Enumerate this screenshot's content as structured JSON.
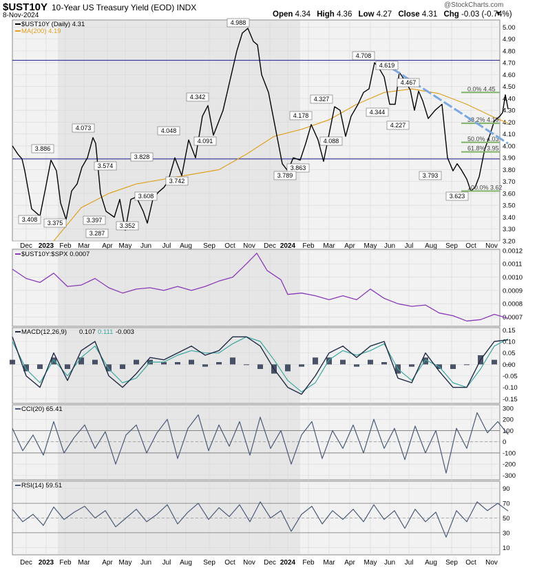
{
  "header": {
    "symbol": "$UST10Y",
    "description": "10-Year US Treasury Yield (EOD)",
    "exchange": "INDX",
    "date": "8-Nov-2024",
    "watermark": "@StockCharts.com",
    "open_label": "Open",
    "open": "4.34",
    "high_label": "High",
    "high": "4.36",
    "low_label": "Low",
    "low": "4.27",
    "close_label": "Close",
    "close": "4.31",
    "chg_label": "Chg",
    "chg": "-0.03 (-0.74%)",
    "dropdown_icon": "chevron-down-icon"
  },
  "colors": {
    "price": "#000000",
    "ma": "#e0a020",
    "ratio": "#8a3ab9",
    "macd": "#1f2a44",
    "signal": "#3aa6a0",
    "hist": "#1f2a44",
    "cci": "#4a5a78",
    "rsi": "#4a5a78",
    "fib": "#7fb36a",
    "trend": "#7aa8e0",
    "hline": "#1a1a8c",
    "shade": "#e6e6e6",
    "panel_bg": "#f2f2f2"
  },
  "chart_data": [
    {
      "type": "line",
      "panel": "price",
      "legend": [
        "$UST10Y (Daily) 4.31",
        "MA(200) 4.19"
      ],
      "ylim": [
        3.2,
        5.06
      ],
      "yticks": [
        "5.00",
        "4.90",
        "4.80",
        "4.70",
        "4.60",
        "4.50",
        "4.40",
        "4.30",
        "4.20",
        "4.10",
        "4.00",
        "3.90",
        "3.80",
        "3.70",
        "3.60",
        "3.50",
        "3.40",
        "3.30",
        "3.20"
      ],
      "series": [
        {
          "name": "$UST10Y (Daily) 4.31",
          "x": [
            0,
            8,
            14,
            18,
            28,
            40,
            48,
            56,
            64,
            70,
            78,
            86,
            94,
            101,
            109,
            117,
            121,
            128,
            136,
            148,
            156,
            164,
            172,
            180,
            190,
            196,
            204,
            212,
            220,
            226,
            236,
            246,
            256,
            266,
            276,
            284,
            292,
            306,
            316,
            326,
            334,
            342,
            350,
            356,
            362,
            372,
            382,
            392,
            400,
            408,
            418,
            426,
            434,
            444,
            452,
            460,
            468,
            476,
            484,
            492,
            502,
            510,
            518,
            526,
            534,
            540,
            548,
            556,
            562,
            570,
            578,
            584,
            590,
            596,
            604,
            614,
            624,
            632,
            640,
            646,
            652,
            660,
            666,
            672,
            678,
            686,
            694,
            700,
            708,
            712,
            716,
            720
          ],
          "values": [
            4.0,
            3.93,
            3.89,
            3.79,
            3.47,
            3.41,
            3.64,
            3.88,
            3.79,
            3.52,
            3.38,
            3.62,
            3.68,
            3.82,
            3.9,
            4.07,
            4.02,
            3.6,
            3.45,
            3.4,
            3.55,
            3.29,
            3.55,
            3.57,
            3.45,
            3.35,
            3.55,
            3.61,
            3.65,
            3.7,
            3.9,
            3.75,
            4.05,
            3.9,
            4.25,
            4.34,
            4.09,
            4.3,
            4.55,
            4.8,
            4.95,
            4.99,
            4.88,
            4.85,
            4.6,
            4.45,
            4.15,
            3.85,
            3.79,
            3.9,
            3.88,
            4.02,
            4.18,
            4.05,
            3.87,
            4.1,
            4.33,
            4.3,
            4.08,
            4.25,
            4.35,
            4.45,
            4.48,
            4.7,
            4.64,
            4.58,
            4.35,
            4.35,
            4.62,
            4.55,
            4.47,
            4.3,
            4.46,
            4.38,
            4.23,
            4.3,
            4.35,
            3.9,
            3.79,
            3.85,
            3.8,
            3.72,
            3.62,
            3.65,
            3.74,
            3.97,
            4.1,
            4.21,
            4.25,
            4.28,
            4.43,
            4.31
          ]
        },
        {
          "name": "MA(200) 4.19",
          "x": [
            60,
            100,
            140,
            180,
            220,
            260,
            300,
            340,
            380,
            420,
            460,
            500,
            540,
            580,
            620,
            660,
            700,
            720
          ],
          "values": [
            3.2,
            3.48,
            3.6,
            3.68,
            3.72,
            3.76,
            3.8,
            3.93,
            4.08,
            4.14,
            4.22,
            4.35,
            4.45,
            4.48,
            4.44,
            4.35,
            4.24,
            4.19
          ]
        }
      ],
      "annotations": [
        "4.988",
        "4.708",
        "4.619",
        "4.467",
        "4.344",
        "4.342",
        "4.327",
        "4.227",
        "4.178",
        "4.091",
        "4.088",
        "4.073",
        "4.048",
        "3.886",
        "3.863",
        "3.828",
        "3.793",
        "3.789",
        "3.742",
        "3.623",
        "3.608",
        "3.574",
        "3.408",
        "3.397",
        "3.375",
        "3.352",
        "3.287"
      ],
      "fib_labels": [
        "0.0% 4.45",
        "38.2% 4.19",
        "50.0% 4.03",
        "61.8% 3.95",
        "100.0% 3.62"
      ],
      "fib_levels": [
        4.45,
        4.19,
        4.03,
        3.95,
        3.62
      ],
      "hlines": [
        4.72,
        3.89
      ],
      "trendline": {
        "start": [
          536,
          4.71
        ],
        "end": [
          720,
          4.02
        ]
      },
      "x_ticks": [
        "Dec",
        "2023",
        "Feb",
        "Mar",
        "Apr",
        "May",
        "Jun",
        "Jul",
        "Aug",
        "Sep",
        "Oct",
        "Nov",
        "Dec",
        "2024",
        "Feb",
        "Mar",
        "Apr",
        "May",
        "Jun",
        "Jul",
        "Aug",
        "Sep",
        "Oct",
        "Nov"
      ]
    },
    {
      "type": "line",
      "panel": "ratio",
      "legend": "$UST10Y:$SPX 0.0007",
      "ylim": [
        0.00063,
        0.00121
      ],
      "yticks": [
        "0.0012",
        "0.0011",
        "0.0010",
        "0.0009",
        "0.0008",
        "0.0007"
      ],
      "series": [
        {
          "name": "$UST10Y:$SPX 0.0007",
          "x": [
            0,
            20,
            40,
            60,
            80,
            100,
            120,
            140,
            160,
            180,
            200,
            220,
            240,
            260,
            280,
            300,
            320,
            340,
            355,
            370,
            390,
            400,
            420,
            440,
            460,
            480,
            500,
            520,
            540,
            560,
            580,
            600,
            620,
            640,
            660,
            680,
            700,
            720
          ],
          "values": [
            0.00106,
            0.00099,
            0.00096,
            0.00103,
            0.00093,
            0.00094,
            0.00099,
            0.00092,
            0.00088,
            0.00091,
            0.00092,
            0.0009,
            0.00093,
            0.0009,
            0.00093,
            0.00097,
            0.001,
            0.0011,
            0.00118,
            0.00105,
            0.00098,
            0.00087,
            0.00088,
            0.00086,
            0.00083,
            0.00086,
            0.00083,
            0.00091,
            0.00084,
            0.0008,
            0.00078,
            0.00079,
            0.00073,
            0.00071,
            0.00067,
            0.00068,
            0.00072,
            0.00069
          ]
        }
      ]
    },
    {
      "type": "line",
      "panel": "macd",
      "legend": [
        "MACD(12,26,9)",
        "0.107",
        "0.111",
        "-0.003"
      ],
      "ylim": [
        -0.17,
        0.16
      ],
      "yticks": [
        "0.15",
        "0.10",
        "0.05",
        "0.00",
        "-0.05",
        "-0.10",
        "-0.15"
      ],
      "series": [
        {
          "name": "MACD(12,26,9)",
          "x": [
            0,
            20,
            40,
            60,
            80,
            100,
            120,
            140,
            160,
            180,
            200,
            220,
            240,
            260,
            280,
            300,
            320,
            340,
            360,
            380,
            400,
            420,
            440,
            460,
            480,
            500,
            520,
            540,
            560,
            580,
            600,
            620,
            640,
            660,
            680,
            700,
            720
          ],
          "values": [
            0.12,
            -0.05,
            -0.1,
            0.05,
            -0.07,
            0.06,
            0.1,
            -0.05,
            -0.1,
            -0.04,
            0.03,
            0.02,
            0.05,
            0.08,
            0.04,
            0.06,
            0.12,
            0.12,
            0.08,
            -0.02,
            -0.1,
            -0.13,
            -0.05,
            0.05,
            0.08,
            0.03,
            0.08,
            0.1,
            -0.06,
            -0.08,
            0.05,
            -0.03,
            -0.1,
            -0.1,
            0.02,
            0.1,
            0.107
          ]
        },
        {
          "name": "0.111",
          "x": [
            0,
            20,
            40,
            60,
            80,
            100,
            120,
            140,
            160,
            180,
            200,
            220,
            240,
            260,
            280,
            300,
            320,
            340,
            360,
            380,
            400,
            420,
            440,
            460,
            480,
            500,
            520,
            540,
            560,
            580,
            600,
            620,
            640,
            660,
            680,
            700,
            720
          ],
          "values": [
            0.1,
            -0.02,
            -0.08,
            0.02,
            -0.05,
            0.03,
            0.08,
            -0.02,
            -0.08,
            -0.06,
            0.01,
            0.01,
            0.04,
            0.06,
            0.05,
            0.05,
            0.09,
            0.12,
            0.1,
            0.02,
            -0.07,
            -0.12,
            -0.08,
            0.02,
            0.06,
            0.04,
            0.06,
            0.09,
            -0.02,
            -0.07,
            0.02,
            -0.01,
            -0.08,
            -0.1,
            -0.02,
            0.08,
            0.111
          ]
        }
      ],
      "histogram": {
        "name": "-0.003",
        "x": [
          0,
          20,
          40,
          60,
          80,
          100,
          120,
          140,
          160,
          180,
          200,
          220,
          240,
          260,
          280,
          300,
          320,
          340,
          360,
          380,
          400,
          420,
          440,
          460,
          480,
          500,
          520,
          540,
          560,
          580,
          600,
          620,
          640,
          660,
          680,
          700,
          720
        ],
        "values": [
          0.02,
          -0.03,
          -0.02,
          0.03,
          -0.02,
          0.03,
          0.02,
          -0.03,
          -0.02,
          0.02,
          0.02,
          0.01,
          0.01,
          0.02,
          -0.01,
          0.01,
          0.03,
          0.0,
          -0.02,
          -0.04,
          -0.03,
          -0.01,
          0.03,
          0.03,
          0.02,
          -0.01,
          0.02,
          0.01,
          -0.04,
          -0.01,
          0.03,
          -0.02,
          -0.02,
          0.0,
          0.04,
          0.02,
          -0.003
        ]
      }
    },
    {
      "type": "line",
      "panel": "cci",
      "legend": "CCI(20) 65.41",
      "ylim": [
        -340,
        330
      ],
      "yticks": [
        "300",
        "200",
        "100",
        "0",
        "-100",
        "-200",
        "-300"
      ],
      "series": [
        {
          "name": "CCI(20) 65.41",
          "x": [
            0,
            15,
            30,
            45,
            60,
            75,
            90,
            105,
            120,
            135,
            150,
            165,
            180,
            195,
            210,
            225,
            240,
            255,
            270,
            285,
            300,
            315,
            330,
            345,
            360,
            375,
            390,
            405,
            420,
            435,
            450,
            465,
            480,
            495,
            510,
            525,
            540,
            555,
            570,
            585,
            600,
            615,
            630,
            645,
            660,
            675,
            690,
            705,
            720
          ],
          "values": [
            120,
            -80,
            60,
            -120,
            180,
            -100,
            40,
            150,
            -60,
            90,
            -200,
            60,
            150,
            -100,
            80,
            200,
            -150,
            120,
            240,
            -80,
            150,
            -40,
            180,
            -120,
            220,
            -60,
            100,
            -200,
            60,
            180,
            -150,
            100,
            -60,
            150,
            -100,
            200,
            -60,
            120,
            -160,
            140,
            -100,
            100,
            -280,
            120,
            -60,
            260,
            80,
            180,
            65
          ]
        }
      ]
    },
    {
      "type": "line",
      "panel": "rsi",
      "legend": "RSI(14) 59.51",
      "ylim": [
        0,
        100
      ],
      "yticks": [
        "90",
        "70",
        "50",
        "30",
        "10"
      ],
      "series": [
        {
          "name": "RSI(14) 59.51",
          "x": [
            0,
            15,
            30,
            45,
            60,
            75,
            90,
            105,
            120,
            135,
            150,
            165,
            180,
            195,
            210,
            225,
            240,
            255,
            270,
            285,
            300,
            315,
            330,
            345,
            360,
            375,
            390,
            405,
            420,
            435,
            450,
            465,
            480,
            495,
            510,
            525,
            540,
            555,
            570,
            585,
            600,
            615,
            630,
            645,
            660,
            675,
            690,
            705,
            720
          ],
          "values": [
            62,
            45,
            55,
            40,
            65,
            48,
            58,
            66,
            50,
            60,
            38,
            50,
            62,
            45,
            55,
            68,
            42,
            58,
            70,
            48,
            64,
            52,
            68,
            45,
            72,
            50,
            60,
            32,
            55,
            66,
            42,
            60,
            48,
            62,
            45,
            68,
            48,
            60,
            36,
            62,
            45,
            58,
            24,
            60,
            45,
            72,
            60,
            70,
            59.51
          ]
        }
      ]
    }
  ],
  "shading": [
    [
      66,
      418
    ]
  ]
}
